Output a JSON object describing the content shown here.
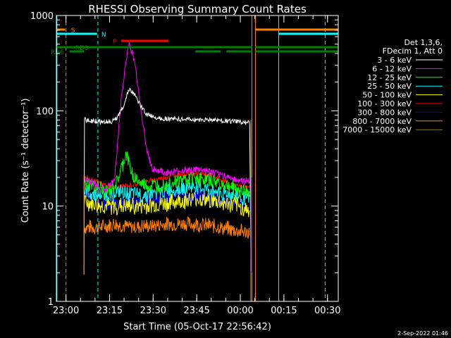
{
  "chart_data": {
    "type": "line",
    "title": "RHESSI Observing Summary Count Rates",
    "xlabel": "Start Time (05-Oct-17 22:56:42)",
    "ylabel": "Count Rate (s⁻¹ detector⁻¹)",
    "y_scale": "log",
    "ylim": [
      1,
      1000
    ],
    "xlim_minutes": [
      0,
      97
    ],
    "x_ticks": [
      {
        "label": "23:00",
        "t": 3.3
      },
      {
        "label": "23:15",
        "t": 18.3
      },
      {
        "label": "23:30",
        "t": 33.3
      },
      {
        "label": "23:45",
        "t": 48.3
      },
      {
        "label": "00:00",
        "t": 63.3
      },
      {
        "label": "00:15",
        "t": 78.3
      },
      {
        "label": "00:30",
        "t": 93.3
      }
    ],
    "y_ticks": [
      {
        "label": "1",
        "v": 1
      },
      {
        "label": "10",
        "v": 10
      },
      {
        "label": "100",
        "v": 100
      },
      {
        "label": "1000",
        "v": 1000
      }
    ],
    "legend": {
      "position": "right",
      "header": [
        "Det 1,3,6,",
        "FDecim 1, Att 0"
      ],
      "entries": [
        {
          "label": "3 - 6 keV",
          "color": "#ffffff"
        },
        {
          "label": "6 - 12 keV",
          "color": "#ff00ff"
        },
        {
          "label": "12 - 25 keV",
          "color": "#00ff00"
        },
        {
          "label": "25 - 50 keV",
          "color": "#00ffff"
        },
        {
          "label": "50 - 100 keV",
          "color": "#ffff00"
        },
        {
          "label": "100 - 300 keV",
          "color": "#ff0000"
        },
        {
          "label": "300 - 800 keV",
          "color": "#0000ff"
        },
        {
          "label": "800 - 7000 keV",
          "color": "#ff8000"
        },
        {
          "label": "7000 - 15000 keV",
          "color": "#808000"
        }
      ]
    },
    "series": [
      {
        "name": "3 - 6 keV",
        "color": "#ffffff",
        "noise": 0.02,
        "points": [
          [
            9.5,
            1.9
          ],
          [
            9.6,
            80
          ],
          [
            15,
            77
          ],
          [
            20,
            78
          ],
          [
            23,
            110
          ],
          [
            25,
            170
          ],
          [
            27,
            145
          ],
          [
            29,
            112
          ],
          [
            31,
            92
          ],
          [
            35,
            84
          ],
          [
            45,
            81
          ],
          [
            55,
            80
          ],
          [
            62,
            77
          ],
          [
            66.5,
            75
          ],
          [
            67,
            2
          ]
        ]
      },
      {
        "name": "6 - 12 keV",
        "color": "#ff00ff",
        "noise": 0.03,
        "points": [
          [
            9.6,
            20
          ],
          [
            13,
            17
          ],
          [
            17,
            15
          ],
          [
            20,
            19
          ],
          [
            22.5,
            150
          ],
          [
            24,
            330
          ],
          [
            25,
            520
          ],
          [
            27,
            320
          ],
          [
            29,
            110
          ],
          [
            31,
            40
          ],
          [
            33,
            25
          ],
          [
            38,
            22
          ],
          [
            45,
            24
          ],
          [
            50,
            24
          ],
          [
            55,
            22
          ],
          [
            62,
            19
          ],
          [
            66.5,
            18
          ]
        ]
      },
      {
        "name": "12 - 25 keV",
        "color": "#00ff00",
        "noise": 0.06,
        "points": [
          [
            9.6,
            17
          ],
          [
            14,
            16
          ],
          [
            18,
            14
          ],
          [
            21,
            18
          ],
          [
            23,
            28
          ],
          [
            24,
            36
          ],
          [
            26,
            22
          ],
          [
            29,
            17
          ],
          [
            32,
            16
          ],
          [
            40,
            18
          ],
          [
            48,
            20
          ],
          [
            55,
            18
          ],
          [
            62,
            15
          ],
          [
            66.5,
            14
          ]
        ]
      },
      {
        "name": "25 - 50 keV",
        "color": "#00ffff",
        "noise": 0.06,
        "points": [
          [
            9.6,
            14
          ],
          [
            15,
            13
          ],
          [
            22,
            14
          ],
          [
            30,
            13
          ],
          [
            40,
            15
          ],
          [
            48,
            16
          ],
          [
            56,
            14
          ],
          [
            62,
            13
          ],
          [
            66.5,
            12
          ]
        ]
      },
      {
        "name": "50 - 100 keV",
        "color": "#ffff00",
        "noise": 0.07,
        "points": [
          [
            9.6,
            11
          ],
          [
            15,
            10
          ],
          [
            22,
            10
          ],
          [
            30,
            10
          ],
          [
            40,
            11
          ],
          [
            48,
            12
          ],
          [
            56,
            11
          ],
          [
            62,
            10
          ],
          [
            66.5,
            9
          ]
        ]
      },
      {
        "name": "100 - 300 keV",
        "color": "#ff0000",
        "noise": 0.02,
        "points": [
          [
            9.6,
            20
          ],
          [
            14,
            18
          ],
          [
            18,
            16
          ],
          [
            22,
            16
          ],
          [
            28,
            17
          ],
          [
            34,
            19
          ],
          [
            40,
            21
          ],
          [
            45,
            22
          ],
          [
            50,
            22
          ],
          [
            55,
            20
          ],
          [
            60,
            17
          ],
          [
            66.5,
            16
          ]
        ]
      },
      {
        "name": "300 - 800 keV",
        "color": "#0000ff",
        "noise": 0.05,
        "points": [
          [
            9.6,
            13
          ],
          [
            14,
            11
          ],
          [
            18,
            10
          ],
          [
            24,
            11
          ],
          [
            30,
            11
          ],
          [
            36,
            12
          ],
          [
            42,
            12.5
          ],
          [
            48,
            13
          ],
          [
            54,
            12
          ],
          [
            60,
            11
          ],
          [
            66.5,
            10
          ]
        ]
      },
      {
        "name": "800 - 7000 keV",
        "color": "#ff8000",
        "noise": 0.06,
        "points": [
          [
            9.6,
            6
          ],
          [
            15,
            6
          ],
          [
            20,
            6.5
          ],
          [
            26,
            6
          ],
          [
            32,
            6.2
          ],
          [
            40,
            6.5
          ],
          [
            48,
            6.5
          ],
          [
            56,
            6
          ],
          [
            62,
            5.5
          ],
          [
            66.5,
            5.3
          ]
        ]
      }
    ],
    "spikes": [
      {
        "t": 9.5,
        "from": 1.9,
        "to": 21,
        "color": "#ff8000"
      },
      {
        "t": 66.9,
        "from": 1,
        "to": 80,
        "color": "#ff8000"
      },
      {
        "t": 67.2,
        "from": 2,
        "to": 20,
        "color": "#0000ff"
      }
    ],
    "vlines": [
      {
        "t": 3.3,
        "color": "#ff8000",
        "dash": true
      },
      {
        "t": 14.3,
        "color": "#00ffff",
        "dash": true
      },
      {
        "t": 92.5,
        "color": "#00ffff",
        "dash": true
      },
      {
        "t": 67.3,
        "color": "#ff8000",
        "dash": false
      },
      {
        "t": 68.5,
        "color": "#ff8000",
        "dash": false
      },
      {
        "t": 76.5,
        "color": "#00ffff",
        "dash": false
      },
      {
        "t": 0.2,
        "color": "#00ffff",
        "dash": false
      }
    ],
    "flag_bars": [
      {
        "label": "S",
        "color": "#ff8000",
        "y": 42,
        "segments": [
          [
            0,
            3
          ],
          [
            68.5,
            97
          ]
        ],
        "label_at": 5
      },
      {
        "label": "N",
        "color": "#00ffff",
        "y": 48,
        "segments": [
          [
            0,
            14
          ],
          [
            76.5,
            97
          ]
        ],
        "label_at": 15.5
      },
      {
        "label": "F",
        "color": "#ff0000",
        "y": 58,
        "segments": [
          [
            22.3,
            38.5
          ]
        ],
        "label_at": 19.5
      },
      {
        "label": "RD9",
        "color": "#008000",
        "y": 67,
        "segments": [
          [
            0,
            67.5
          ],
          [
            68.5,
            97
          ]
        ],
        "label_at": 6.5
      },
      {
        "label": "RD6",
        "color": "#008000",
        "y": 73,
        "segments": [
          [
            4.5,
            9.5
          ],
          [
            47.8,
            56.5
          ],
          [
            58.5,
            67.5
          ],
          [
            68.5,
            97
          ]
        ],
        "label_at": 0
      }
    ],
    "footnote": "2-Sep-2022 01:46"
  }
}
